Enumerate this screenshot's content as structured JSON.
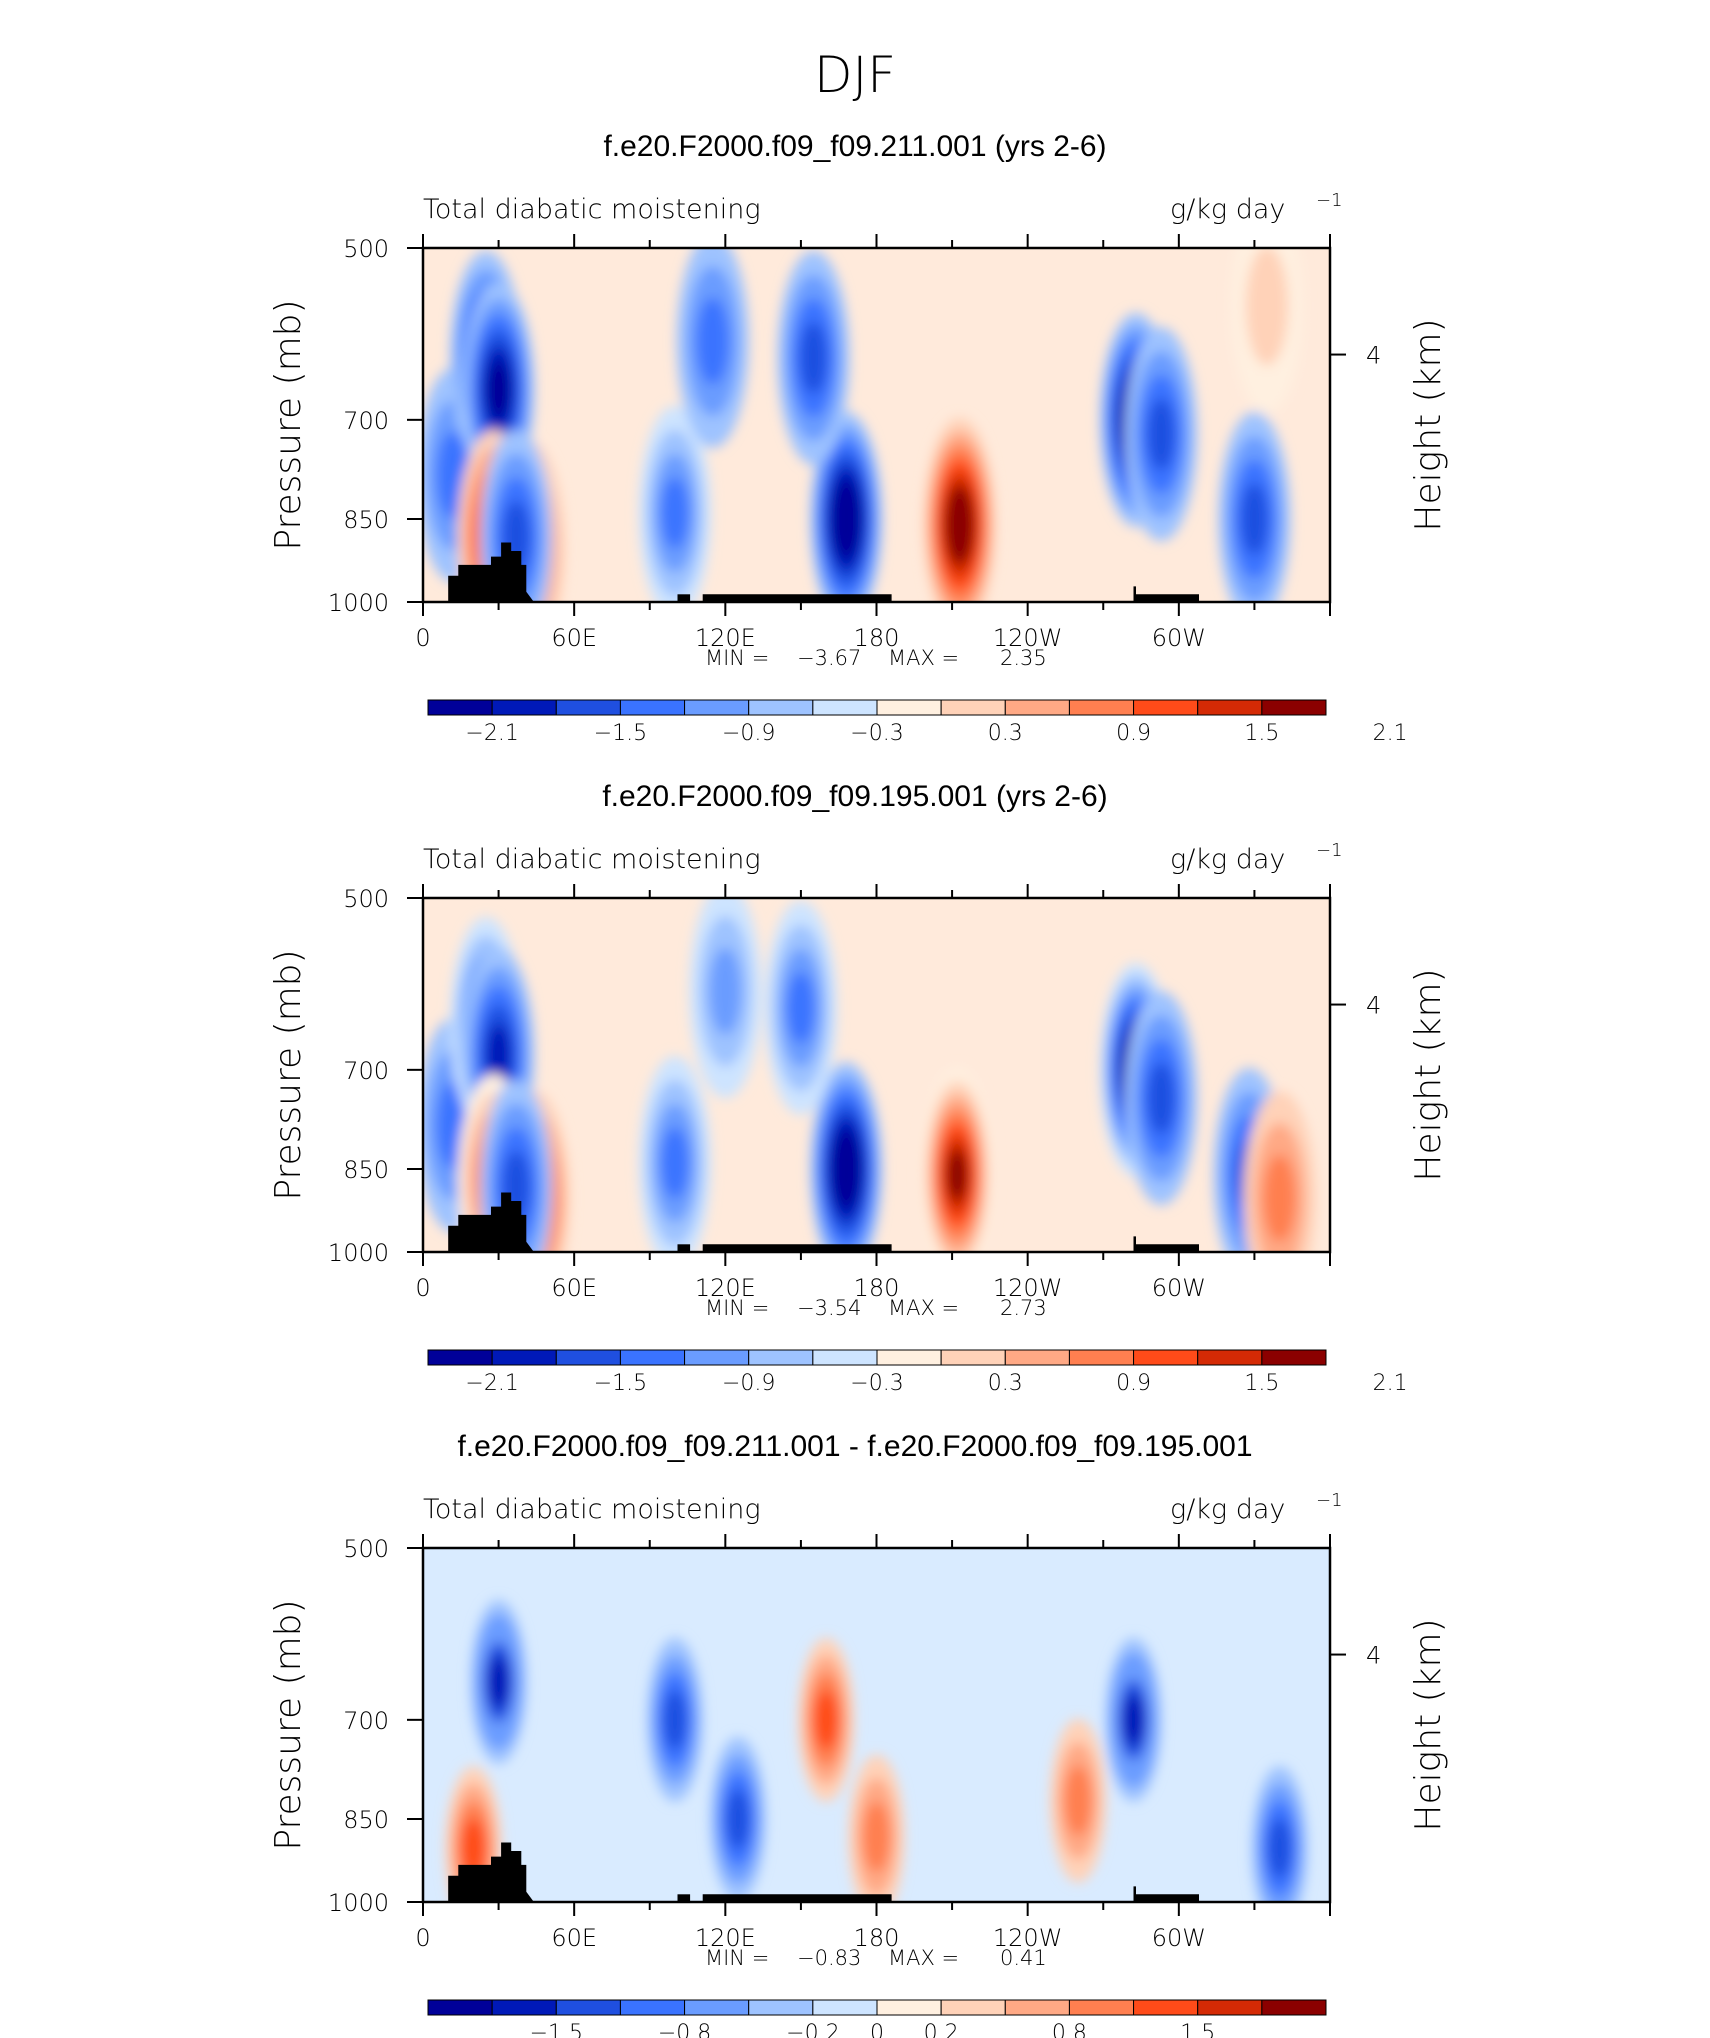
{
  "figure": {
    "title": "DJF"
  },
  "colors": {
    "ramp": [
      "#000099",
      "#0019b8",
      "#1f4fe0",
      "#3a73ff",
      "#6a9cff",
      "#9ec3ff",
      "#cde4ff",
      "#fff0e0",
      "#ffd2b8",
      "#ffa985",
      "#ff7f50",
      "#ff4b19",
      "#d42a05",
      "#8b0000"
    ],
    "land": "#000000",
    "background": "#ffeadb"
  },
  "chart_data": [
    {
      "type": "heatmap",
      "title": "f.e20.F2000.f09_f09.211.001 (yrs 2-6)",
      "left_label": "Total diabatic moistening",
      "right_label": "g/kg day",
      "right_label_exp": "−1",
      "ylabel": "Pressure (mb)",
      "ylabel_right": "Height (km)",
      "x_ticks": [
        "0",
        "60E",
        "120E",
        "180",
        "120W",
        "60W"
      ],
      "y_ticks": [
        "500",
        "700",
        "850",
        "1000"
      ],
      "right_ticks": [
        "4"
      ],
      "stats": {
        "min_label": "MIN =",
        "min": "−3.67",
        "max_label": "MAX =",
        "max": "2.35"
      },
      "colorbar_labels": [
        "−2.1",
        "−1.5",
        "−0.9",
        "−0.3",
        "0.3",
        "0.9",
        "1.5",
        "2.1"
      ],
      "fields": [
        {
          "lon": 12,
          "p": 780,
          "v": -0.9
        },
        {
          "lon": 25,
          "p": 620,
          "v": -1.5
        },
        {
          "lon": 30,
          "p": 660,
          "v": -1.8
        },
        {
          "lon": 28,
          "p": 880,
          "v": 1.5
        },
        {
          "lon": 42,
          "p": 900,
          "v": 1.3
        },
        {
          "lon": 37,
          "p": 880,
          "v": -1.2
        },
        {
          "lon": 100,
          "p": 840,
          "v": -1.1
        },
        {
          "lon": 115,
          "p": 600,
          "v": -0.9
        },
        {
          "lon": 168,
          "p": 850,
          "v": -2.1
        },
        {
          "lon": 155,
          "p": 620,
          "v": -1.2
        },
        {
          "lon": 213,
          "p": 860,
          "v": 2.1
        },
        {
          "lon": 283,
          "p": 700,
          "v": -2.2
        },
        {
          "lon": 293,
          "p": 720,
          "v": -1.3
        },
        {
          "lon": 330,
          "p": 850,
          "v": -1.3
        },
        {
          "lon": 335,
          "p": 560,
          "v": 0.5
        }
      ]
    },
    {
      "type": "heatmap",
      "title": "f.e20.F2000.f09_f09.195.001 (yrs 2-6)",
      "left_label": "Total diabatic moistening",
      "right_label": "g/kg day",
      "right_label_exp": "−1",
      "ylabel": "Pressure (mb)",
      "ylabel_right": "Height (km)",
      "x_ticks": [
        "0",
        "60E",
        "120E",
        "180",
        "120W",
        "60W"
      ],
      "y_ticks": [
        "500",
        "700",
        "850",
        "1000"
      ],
      "right_ticks": [
        "4"
      ],
      "stats": {
        "min_label": "MIN =",
        "min": "−3.54",
        "max_label": "MAX =",
        "max": "2.73"
      },
      "colorbar_labels": [
        "−2.1",
        "−1.5",
        "−0.9",
        "−0.3",
        "0.3",
        "0.9",
        "1.5",
        "2.1"
      ],
      "fields": [
        {
          "lon": 12,
          "p": 780,
          "v": -0.9
        },
        {
          "lon": 25,
          "p": 640,
          "v": -1.4
        },
        {
          "lon": 30,
          "p": 680,
          "v": -1.6
        },
        {
          "lon": 28,
          "p": 870,
          "v": 1.4
        },
        {
          "lon": 44,
          "p": 900,
          "v": 1.6
        },
        {
          "lon": 37,
          "p": 880,
          "v": -1.2
        },
        {
          "lon": 100,
          "p": 840,
          "v": -1.1
        },
        {
          "lon": 120,
          "p": 600,
          "v": -0.8
        },
        {
          "lon": 168,
          "p": 850,
          "v": -2.2
        },
        {
          "lon": 150,
          "p": 620,
          "v": -1.1
        },
        {
          "lon": 212,
          "p": 860,
          "v": 2.0
        },
        {
          "lon": 283,
          "p": 700,
          "v": -2.3
        },
        {
          "lon": 293,
          "p": 740,
          "v": -1.2
        },
        {
          "lon": 328,
          "p": 860,
          "v": -1.2
        },
        {
          "lon": 340,
          "p": 900,
          "v": 0.9
        }
      ]
    },
    {
      "type": "heatmap",
      "title": "f.e20.F2000.f09_f09.211.001 - f.e20.F2000.f09_f09.195.001",
      "left_label": "Total diabatic moistening",
      "right_label": "g/kg day",
      "right_label_exp": "−1",
      "ylabel": "Pressure (mb)",
      "ylabel_right": "Height (km)",
      "x_ticks": [
        "0",
        "60E",
        "120E",
        "180",
        "120W",
        "60W"
      ],
      "y_ticks": [
        "500",
        "700",
        "850",
        "1000"
      ],
      "right_ticks": [
        "4"
      ],
      "stats": {
        "min_label": "MIN =",
        "min": "−0.83",
        "max_label": "MAX =",
        "max": "0.41"
      },
      "colorbar_labels": [
        "−1.5",
        "−0.8",
        "−0.2",
        "0",
        "0.2",
        "0.8",
        "1.5"
      ],
      "fields": [
        {
          "lon": 30,
          "p": 650,
          "v": -0.5
        },
        {
          "lon": 20,
          "p": 900,
          "v": 0.4
        },
        {
          "lon": 100,
          "p": 700,
          "v": -0.4
        },
        {
          "lon": 125,
          "p": 850,
          "v": -0.4
        },
        {
          "lon": 160,
          "p": 700,
          "v": 0.4
        },
        {
          "lon": 180,
          "p": 880,
          "v": 0.35
        },
        {
          "lon": 260,
          "p": 820,
          "v": 0.35
        },
        {
          "lon": 282,
          "p": 700,
          "v": -0.5
        },
        {
          "lon": 340,
          "p": 900,
          "v": -0.4
        }
      ]
    }
  ]
}
